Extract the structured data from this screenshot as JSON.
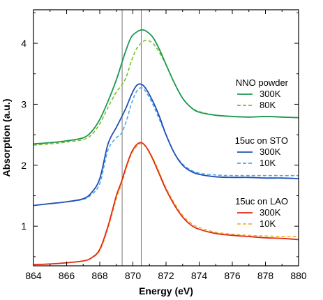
{
  "chart_data": {
    "type": "line",
    "xlabel": "Energy (eV)",
    "ylabel": "Absorption (a.u.)",
    "xlim": [
      864,
      880
    ],
    "ylim": [
      0.35,
      4.55
    ],
    "xticks": [
      864,
      866,
      868,
      870,
      872,
      874,
      876,
      878,
      880
    ],
    "yticks": [
      1,
      2,
      3,
      4
    ],
    "vlines": [
      869.35,
      870.5
    ],
    "groups": [
      {
        "title": "NNO powder",
        "series": [
          {
            "name": "300K",
            "color": "#1a9850",
            "dash": false,
            "x": [
              864,
              865,
              866,
              867,
              867.5,
              868,
              868.5,
              869,
              869.3,
              869.6,
              869.9,
              870.2,
              870.5,
              870.8,
              871.2,
              871.6,
              872,
              872.5,
              873,
              873.5,
              874,
              875,
              876,
              877,
              878,
              879,
              880
            ],
            "y": [
              2.35,
              2.37,
              2.4,
              2.45,
              2.55,
              2.75,
              3.05,
              3.4,
              3.65,
              3.9,
              4.1,
              4.18,
              4.22,
              4.2,
              4.1,
              3.9,
              3.65,
              3.35,
              3.1,
              2.95,
              2.87,
              2.82,
              2.8,
              2.79,
              2.8,
              2.79,
              2.78
            ]
          },
          {
            "name": "80K",
            "color": "#7cbf2a",
            "dash": true,
            "x": [
              864,
              865,
              866,
              867,
              867.5,
              868,
              868.5,
              869,
              869.3,
              869.6,
              869.9,
              870.2,
              870.5,
              870.8,
              871.2,
              871.6,
              872,
              872.5,
              873,
              873.5,
              874,
              875,
              876,
              877,
              878,
              879,
              880
            ],
            "y": [
              2.33,
              2.35,
              2.38,
              2.42,
              2.5,
              2.68,
              2.95,
              3.2,
              3.3,
              3.45,
              3.7,
              3.9,
              4.0,
              4.05,
              4.0,
              3.85,
              3.65,
              3.35,
              3.1,
              2.95,
              2.88,
              2.82,
              2.8,
              2.79,
              2.8,
              2.79,
              2.78
            ]
          }
        ]
      },
      {
        "title": "15uc on STO",
        "series": [
          {
            "name": "300K",
            "color": "#1f4fb5",
            "dash": false,
            "x": [
              864,
              865,
              866,
              867,
              867.5,
              868,
              868.5,
              869,
              869.3,
              869.6,
              869.9,
              870.2,
              870.5,
              870.8,
              871.2,
              871.6,
              872,
              872.5,
              873,
              873.5,
              874,
              875,
              876,
              877,
              878,
              879,
              880
            ],
            "y": [
              1.34,
              1.37,
              1.4,
              1.45,
              1.55,
              1.78,
              2.35,
              2.62,
              2.78,
              2.95,
              3.15,
              3.3,
              3.33,
              3.25,
              3.05,
              2.8,
              2.5,
              2.2,
              2.0,
              1.9,
              1.85,
              1.81,
              1.8,
              1.8,
              1.79,
              1.79,
              1.78
            ]
          },
          {
            "name": "10K",
            "color": "#4aa8e8",
            "dash": true,
            "x": [
              864,
              865,
              866,
              867,
              867.5,
              868,
              868.5,
              869,
              869.3,
              869.6,
              869.9,
              870.2,
              870.5,
              870.8,
              871.2,
              871.6,
              872,
              872.5,
              873,
              873.5,
              874,
              875,
              876,
              877,
              878,
              879,
              880
            ],
            "y": [
              1.34,
              1.37,
              1.4,
              1.44,
              1.52,
              1.7,
              2.25,
              2.45,
              2.52,
              2.72,
              3.0,
              3.2,
              3.27,
              3.2,
              3.0,
              2.75,
              2.5,
              2.2,
              2.02,
              1.92,
              1.87,
              1.84,
              1.83,
              1.83,
              1.83,
              1.83,
              1.83
            ]
          }
        ]
      },
      {
        "title": "15uc on LAO",
        "series": [
          {
            "name": "300K",
            "color": "#e02a10",
            "dash": false,
            "x": [
              864,
              865,
              866,
              867,
              867.5,
              868,
              868.5,
              869,
              869.3,
              869.6,
              869.9,
              870.2,
              870.5,
              870.8,
              871.2,
              871.6,
              872,
              872.5,
              873,
              873.5,
              874,
              875,
              876,
              877,
              878,
              879,
              880
            ],
            "y": [
              0.37,
              0.38,
              0.4,
              0.43,
              0.48,
              0.62,
              1.0,
              1.5,
              1.72,
              1.98,
              2.2,
              2.33,
              2.37,
              2.3,
              2.1,
              1.85,
              1.6,
              1.35,
              1.15,
              1.02,
              0.95,
              0.88,
              0.85,
              0.83,
              0.81,
              0.8,
              0.78
            ]
          },
          {
            "name": "10K",
            "color": "#f5b228",
            "dash": true,
            "x": [
              864,
              865,
              866,
              867,
              867.5,
              868,
              868.5,
              869,
              869.3,
              869.6,
              869.9,
              870.2,
              870.5,
              870.8,
              871.2,
              871.6,
              872,
              872.5,
              873,
              873.5,
              874,
              875,
              876,
              877,
              878,
              879,
              880
            ],
            "y": [
              0.37,
              0.38,
              0.4,
              0.43,
              0.48,
              0.6,
              0.97,
              1.45,
              1.68,
              1.95,
              2.18,
              2.3,
              2.35,
              2.3,
              2.12,
              1.88,
              1.63,
              1.38,
              1.18,
              1.05,
              0.98,
              0.9,
              0.87,
              0.85,
              0.84,
              0.83,
              0.83
            ]
          }
        ]
      }
    ]
  }
}
